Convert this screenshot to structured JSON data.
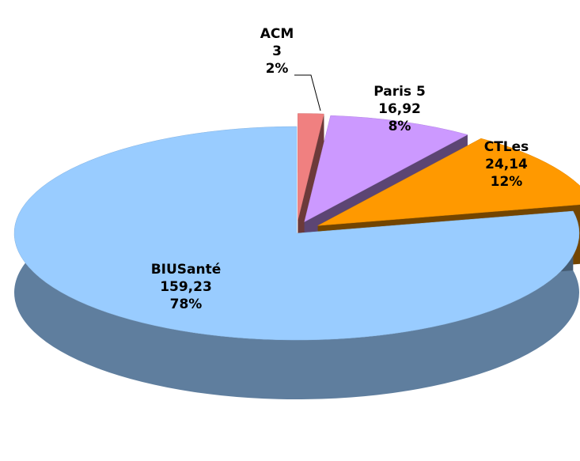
{
  "chart_data": {
    "type": "pie3d",
    "categories": [
      "ACM",
      "Paris 5",
      "CTLes",
      "BIUSanté"
    ],
    "values": [
      3,
      16.92,
      24.14,
      159.23
    ],
    "value_labels": [
      "3",
      "16,92",
      "24,14",
      "159,23"
    ],
    "percent_labels": [
      "2%",
      "8%",
      "12%",
      "78%"
    ],
    "colors": [
      "#f08080",
      "#cc99ff",
      "#ff9900",
      "#99ccff"
    ]
  }
}
